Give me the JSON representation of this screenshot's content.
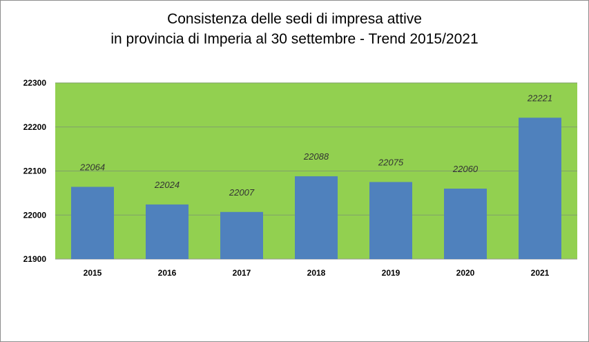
{
  "chart_data": {
    "type": "bar",
    "title": [
      "Consistenza delle sedi di impresa attive",
      "in provincia di Imperia al 30 settembre  - Trend 2015/2021"
    ],
    "categories": [
      "2015",
      "2016",
      "2017",
      "2018",
      "2019",
      "2020",
      "2021"
    ],
    "values": [
      22064,
      22024,
      22007,
      22088,
      22075,
      22060,
      22221
    ],
    "data_labels": [
      "22064",
      "22024",
      "22007",
      "22088",
      "22075",
      "22060",
      "22221"
    ],
    "xlabel": "",
    "ylabel": "",
    "ylim": [
      21900,
      22300
    ],
    "yticks": [
      "21900",
      "22000",
      "22100",
      "22200",
      "22300"
    ],
    "grid": true,
    "legend": "none",
    "colors": {
      "bar": "#4f81bd",
      "plot_bg": "#92d050",
      "grid": "#7f9f6a"
    }
  }
}
